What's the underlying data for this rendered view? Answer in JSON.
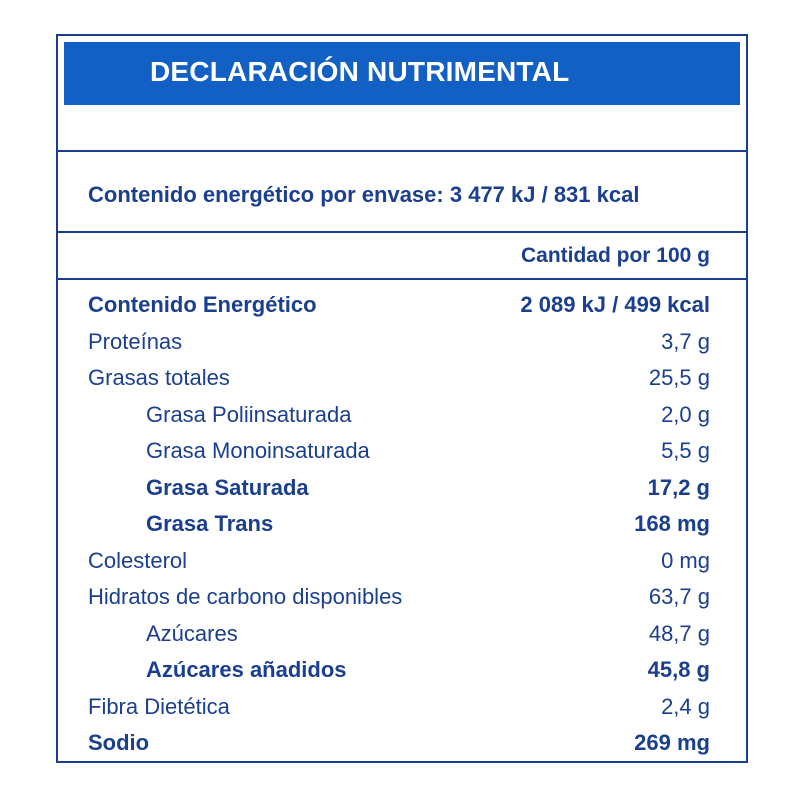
{
  "title": "DECLARACIÓN NUTRIMENTAL",
  "energy_per_container": "Contenido energético por envase: 3 477 kJ / 831 kcal",
  "column_header": "Cantidad por 100 g",
  "rows": [
    {
      "label": "Contenido Energético",
      "value": "2 089 kJ / 499 kcal",
      "bold": true,
      "indent": false
    },
    {
      "label": "Proteínas",
      "value": "3,7 g",
      "bold": false,
      "indent": false
    },
    {
      "label": "Grasas totales",
      "value": "25,5 g",
      "bold": false,
      "indent": false
    },
    {
      "label": "Grasa Poliinsaturada",
      "value": "2,0 g",
      "bold": false,
      "indent": true
    },
    {
      "label": "Grasa Monoinsaturada",
      "value": "5,5 g",
      "bold": false,
      "indent": true
    },
    {
      "label": "Grasa Saturada",
      "value": "17,2 g",
      "bold": true,
      "indent": true
    },
    {
      "label": "Grasa Trans",
      "value": "168 mg",
      "bold": true,
      "indent": true
    },
    {
      "label": "Colesterol",
      "value": "0 mg",
      "bold": false,
      "indent": false
    },
    {
      "label": "Hidratos de carbono disponibles",
      "value": "63,7 g",
      "bold": false,
      "indent": false
    },
    {
      "label": "Azúcares",
      "value": "48,7 g",
      "bold": false,
      "indent": true
    },
    {
      "label": "Azúcares añadidos",
      "value": "45,8 g",
      "bold": true,
      "indent": true
    },
    {
      "label": "Fibra Dietética",
      "value": "2,4 g",
      "bold": false,
      "indent": false
    },
    {
      "label": "Sodio",
      "value": "269 mg",
      "bold": true,
      "indent": false
    }
  ],
  "colors": {
    "text": "#1b3f8f",
    "header_bar": "#1360c4",
    "header_text": "#ffffff"
  }
}
